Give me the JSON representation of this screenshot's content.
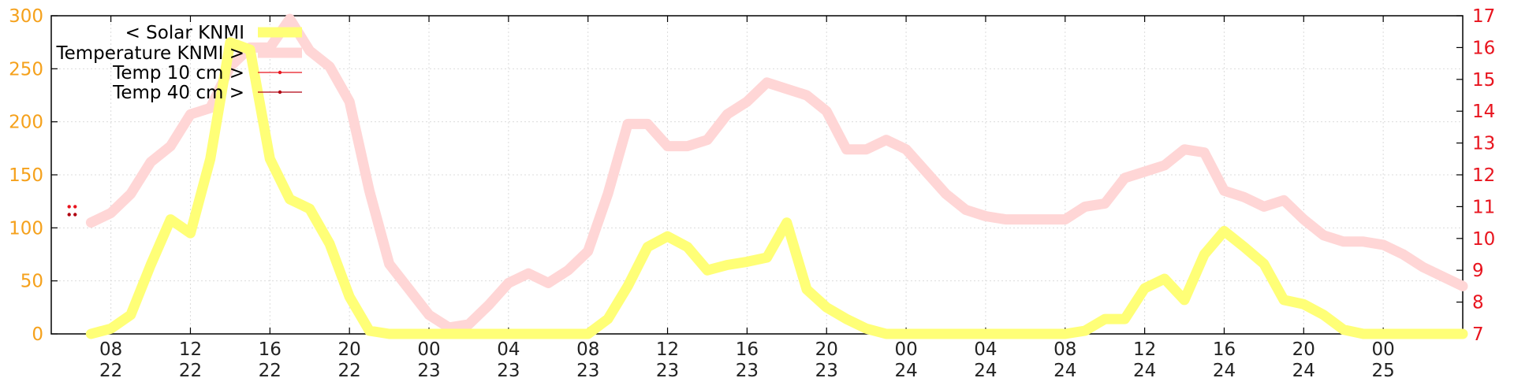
{
  "chart_data": {
    "type": "line",
    "title": "",
    "xlabel": "",
    "ylabel": "",
    "x_start_hour": 7,
    "x_end_hour": 76,
    "x_hours": [
      7,
      8,
      9,
      10,
      11,
      12,
      13,
      14,
      15,
      16,
      17,
      18,
      19,
      20,
      21,
      22,
      23,
      24,
      25,
      26,
      27,
      28,
      29,
      30,
      31,
      32,
      33,
      34,
      35,
      36,
      37,
      38,
      39,
      40,
      41,
      42,
      43,
      44,
      45,
      46,
      47,
      48,
      49,
      50,
      51,
      52,
      53,
      54,
      55,
      56,
      57,
      58,
      59,
      60,
      61,
      62,
      63,
      64,
      65,
      66,
      67,
      68,
      69,
      70,
      71,
      72,
      73,
      74,
      75,
      76
    ],
    "x_ticks": [
      {
        "hour": 8,
        "time": "08",
        "day": "22"
      },
      {
        "hour": 12,
        "time": "12",
        "day": "22"
      },
      {
        "hour": 16,
        "time": "16",
        "day": "22"
      },
      {
        "hour": 20,
        "time": "20",
        "day": "22"
      },
      {
        "hour": 24,
        "time": "00",
        "day": "23"
      },
      {
        "hour": 28,
        "time": "04",
        "day": "23"
      },
      {
        "hour": 32,
        "time": "08",
        "day": "23"
      },
      {
        "hour": 36,
        "time": "12",
        "day": "23"
      },
      {
        "hour": 40,
        "time": "16",
        "day": "23"
      },
      {
        "hour": 44,
        "time": "20",
        "day": "23"
      },
      {
        "hour": 48,
        "time": "00",
        "day": "24"
      },
      {
        "hour": 52,
        "time": "04",
        "day": "24"
      },
      {
        "hour": 56,
        "time": "08",
        "day": "24"
      },
      {
        "hour": 60,
        "time": "12",
        "day": "24"
      },
      {
        "hour": 64,
        "time": "16",
        "day": "24"
      },
      {
        "hour": 68,
        "time": "20",
        "day": "24"
      },
      {
        "hour": 72,
        "time": "00",
        "day": "25"
      }
    ],
    "y_left": {
      "range": [
        0,
        300
      ],
      "ticks": [
        0,
        50,
        100,
        150,
        200,
        250,
        300
      ],
      "color": "#f5a11c"
    },
    "y_right": {
      "range": [
        7,
        17
      ],
      "ticks": [
        7,
        8,
        9,
        10,
        11,
        12,
        13,
        14,
        15,
        16,
        17
      ],
      "color": "#e8141e"
    },
    "grid": true,
    "legend_position": "top-left",
    "series": [
      {
        "name": "< Solar KNMI",
        "axis": "left",
        "color": "#ffff77",
        "values": [
          0,
          5,
          18,
          65,
          108,
          95,
          165,
          275,
          268,
          165,
          127,
          118,
          85,
          35,
          3,
          0,
          0,
          0,
          0,
          0,
          0,
          0,
          0,
          0,
          0,
          0,
          14,
          45,
          82,
          92,
          82,
          60,
          65,
          68,
          72,
          105,
          42,
          25,
          14,
          5,
          0,
          0,
          0,
          0,
          0,
          0,
          0,
          0,
          0,
          0,
          3,
          14,
          14,
          43,
          52,
          32,
          75,
          97,
          82,
          66,
          32,
          28,
          18,
          4,
          0,
          0,
          0,
          0,
          0,
          0
        ]
      },
      {
        "name": "Temperature KNMI >",
        "axis": "right",
        "color": "#ffd6d6",
        "values": [
          10.5,
          10.8,
          11.4,
          12.4,
          12.9,
          13.9,
          14.1,
          15.4,
          16.0,
          16.0,
          16.9,
          15.9,
          15.4,
          14.3,
          11.5,
          9.2,
          8.4,
          7.6,
          7.2,
          7.3,
          7.9,
          8.6,
          8.9,
          8.6,
          9.0,
          9.6,
          11.4,
          13.6,
          13.6,
          12.9,
          12.9,
          13.1,
          13.9,
          14.3,
          14.9,
          14.7,
          14.5,
          14.0,
          12.8,
          12.8,
          13.1,
          12.8,
          12.1,
          11.4,
          10.9,
          10.7,
          10.6,
          10.6,
          10.6,
          10.6,
          11.0,
          11.1,
          11.9,
          12.1,
          12.3,
          12.8,
          12.7,
          11.5,
          11.3,
          11.0,
          11.2,
          10.6,
          10.1,
          9.9,
          9.9,
          9.8,
          9.5,
          9.1,
          8.8,
          8.5
        ]
      },
      {
        "name": "Temp 10 cm >",
        "axis": "right",
        "color": "#e8141e",
        "x": [
          5.9,
          6.2
        ],
        "values": [
          11.0,
          11.0
        ]
      },
      {
        "name": "Temp 40 cm >",
        "axis": "right",
        "color": "#b00010",
        "x": [
          5.9,
          6.2
        ],
        "values": [
          10.75,
          10.75
        ]
      }
    ]
  }
}
